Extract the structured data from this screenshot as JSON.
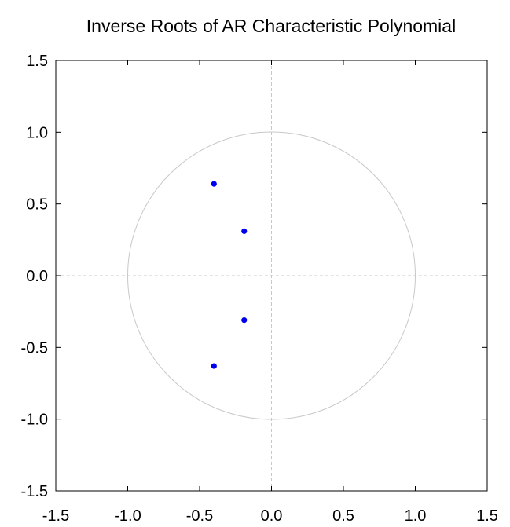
{
  "chart_data": {
    "type": "scatter",
    "title": "Inverse Roots of AR Characteristic Polynomial",
    "xlabel": "",
    "ylabel": "",
    "xlim": [
      -1.5,
      1.5
    ],
    "ylim": [
      -1.5,
      1.5
    ],
    "xticks": [
      "-1.5",
      "-1.0",
      "-0.5",
      "0.0",
      "0.5",
      "1.0",
      "1.5"
    ],
    "yticks": [
      "-1.5",
      "-1.0",
      "-0.5",
      "0.0",
      "0.5",
      "1.0",
      "1.5"
    ],
    "tick_values": [
      -1.5,
      -1.0,
      -0.5,
      0.0,
      0.5,
      1.0,
      1.5
    ],
    "unit_circle_radius": 1.0,
    "zero_lines": true,
    "grid": false,
    "legend": "none",
    "points": [
      {
        "x": -0.4,
        "y": 0.64
      },
      {
        "x": -0.19,
        "y": 0.31
      },
      {
        "x": -0.19,
        "y": -0.31
      },
      {
        "x": -0.4,
        "y": -0.63
      }
    ],
    "colors": {
      "points": "#0000ee",
      "circle": "#c8c8c8",
      "zero_lines": "#c8c8c8",
      "frame": "#000000"
    }
  }
}
